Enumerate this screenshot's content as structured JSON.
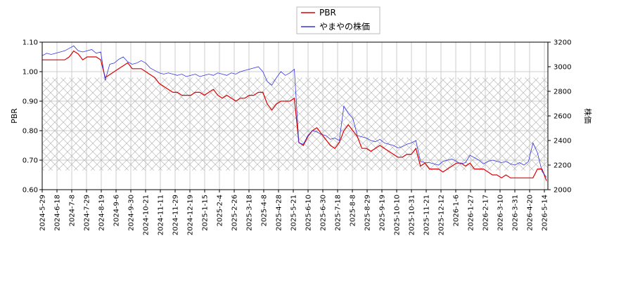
{
  "chart_data": {
    "type": "line",
    "legend": {
      "placement": "top-center",
      "entries": [
        "PBR",
        "やまやの株価"
      ]
    },
    "x_tick_labels": [
      "2024-5-29",
      "2024-6-18",
      "2024-7-8",
      "2024-7-29",
      "2024-8-19",
      "2024-9-6",
      "2024-9-30",
      "2024-10-21",
      "2024-11-11",
      "2024-11-29",
      "2024-12-19",
      "2025-1-15",
      "2025-2-4",
      "2025-2-26",
      "2025-3-18",
      "2025-4-8",
      "2025-4-28",
      "2025-5-21",
      "2025-6-10",
      "2025-6-30",
      "2025-7-18",
      "2025-8-8",
      "2025-8-29",
      "2025-9-19",
      "2025-10-10",
      "2025-10-31",
      "2025-11-21",
      "2025-12-12",
      "2026-1-6",
      "2026-1-27",
      "2026-2-17",
      "2026-3-10",
      "2026-3-31",
      "2026-4-20",
      "2026-5-14"
    ],
    "y_left": {
      "label": "PBR",
      "ylim": [
        0.6,
        1.1
      ],
      "ticks": [
        "0.60",
        "0.70",
        "0.80",
        "0.90",
        "1.00",
        "1.10"
      ]
    },
    "y_right": {
      "label": "株価",
      "ylim": [
        2000,
        3200
      ],
      "ticks": [
        "2000",
        "2200",
        "2400",
        "2600",
        "2800",
        "3000",
        "3200"
      ]
    },
    "grid": true,
    "hatched_band": {
      "axis": "left",
      "from": 0.665,
      "to": 0.98
    },
    "series": [
      {
        "name": "PBR",
        "axis": "left",
        "color": "#dd0000",
        "points": [
          [
            0,
            1.04
          ],
          [
            1,
            1.04
          ],
          [
            2,
            1.04
          ],
          [
            3,
            1.04
          ],
          [
            4,
            1.04
          ],
          [
            5,
            1.04
          ],
          [
            6,
            1.05
          ],
          [
            7,
            1.07
          ],
          [
            8,
            1.06
          ],
          [
            9,
            1.04
          ],
          [
            10,
            1.05
          ],
          [
            11,
            1.05
          ],
          [
            12,
            1.05
          ],
          [
            13,
            1.04
          ],
          [
            14,
            0.98
          ],
          [
            15,
            0.99
          ],
          [
            16,
            1.0
          ],
          [
            17,
            1.01
          ],
          [
            18,
            1.02
          ],
          [
            19,
            1.03
          ],
          [
            20,
            1.01
          ],
          [
            21,
            1.01
          ],
          [
            22,
            1.01
          ],
          [
            23,
            1.0
          ],
          [
            24,
            0.99
          ],
          [
            25,
            0.98
          ],
          [
            26,
            0.96
          ],
          [
            27,
            0.95
          ],
          [
            28,
            0.94
          ],
          [
            29,
            0.93
          ],
          [
            30,
            0.93
          ],
          [
            31,
            0.92
          ],
          [
            32,
            0.92
          ],
          [
            33,
            0.92
          ],
          [
            34,
            0.93
          ],
          [
            35,
            0.93
          ],
          [
            36,
            0.92
          ],
          [
            37,
            0.93
          ],
          [
            38,
            0.94
          ],
          [
            39,
            0.92
          ],
          [
            40,
            0.91
          ],
          [
            41,
            0.92
          ],
          [
            42,
            0.91
          ],
          [
            43,
            0.9
          ],
          [
            44,
            0.91
          ],
          [
            45,
            0.91
          ],
          [
            46,
            0.92
          ],
          [
            47,
            0.92
          ],
          [
            48,
            0.93
          ],
          [
            49,
            0.93
          ],
          [
            50,
            0.89
          ],
          [
            51,
            0.87
          ],
          [
            52,
            0.89
          ],
          [
            53,
            0.9
          ],
          [
            54,
            0.9
          ],
          [
            55,
            0.9
          ],
          [
            56,
            0.91
          ],
          [
            57,
            0.76
          ],
          [
            58,
            0.75
          ],
          [
            59,
            0.78
          ],
          [
            60,
            0.8
          ],
          [
            61,
            0.81
          ],
          [
            62,
            0.79
          ],
          [
            63,
            0.77
          ],
          [
            64,
            0.75
          ],
          [
            65,
            0.74
          ],
          [
            66,
            0.76
          ],
          [
            67,
            0.8
          ],
          [
            68,
            0.82
          ],
          [
            69,
            0.8
          ],
          [
            70,
            0.78
          ],
          [
            71,
            0.74
          ],
          [
            72,
            0.74
          ],
          [
            73,
            0.73
          ],
          [
            74,
            0.74
          ],
          [
            75,
            0.75
          ],
          [
            76,
            0.74
          ],
          [
            77,
            0.73
          ],
          [
            78,
            0.72
          ],
          [
            79,
            0.71
          ],
          [
            80,
            0.71
          ],
          [
            81,
            0.72
          ],
          [
            82,
            0.72
          ],
          [
            83,
            0.74
          ],
          [
            84,
            0.68
          ],
          [
            85,
            0.69
          ],
          [
            86,
            0.67
          ],
          [
            87,
            0.67
          ],
          [
            88,
            0.67
          ],
          [
            89,
            0.66
          ],
          [
            90,
            0.67
          ],
          [
            91,
            0.68
          ],
          [
            92,
            0.69
          ],
          [
            93,
            0.69
          ],
          [
            94,
            0.68
          ],
          [
            95,
            0.69
          ],
          [
            96,
            0.67
          ],
          [
            97,
            0.67
          ],
          [
            98,
            0.67
          ],
          [
            99,
            0.66
          ],
          [
            100,
            0.65
          ],
          [
            101,
            0.65
          ],
          [
            102,
            0.64
          ],
          [
            103,
            0.65
          ],
          [
            104,
            0.64
          ],
          [
            105,
            0.64
          ],
          [
            106,
            0.64
          ],
          [
            107,
            0.64
          ],
          [
            108,
            0.64
          ],
          [
            109,
            0.64
          ],
          [
            110,
            0.67
          ],
          [
            111,
            0.67
          ],
          [
            112,
            0.63
          ]
        ]
      },
      {
        "name": "やまやの株価",
        "axis": "right",
        "color": "#3333dd",
        "points": [
          [
            0,
            3090
          ],
          [
            1,
            3110
          ],
          [
            2,
            3100
          ],
          [
            3,
            3110
          ],
          [
            4,
            3120
          ],
          [
            5,
            3130
          ],
          [
            6,
            3150
          ],
          [
            7,
            3170
          ],
          [
            8,
            3130
          ],
          [
            9,
            3120
          ],
          [
            10,
            3130
          ],
          [
            11,
            3140
          ],
          [
            12,
            3110
          ],
          [
            13,
            3120
          ],
          [
            14,
            2890
          ],
          [
            15,
            3020
          ],
          [
            16,
            3030
          ],
          [
            17,
            3060
          ],
          [
            18,
            3080
          ],
          [
            19,
            3040
          ],
          [
            20,
            3020
          ],
          [
            21,
            3030
          ],
          [
            22,
            3050
          ],
          [
            23,
            3030
          ],
          [
            24,
            2990
          ],
          [
            25,
            2970
          ],
          [
            26,
            2950
          ],
          [
            27,
            2940
          ],
          [
            28,
            2950
          ],
          [
            29,
            2940
          ],
          [
            30,
            2930
          ],
          [
            31,
            2940
          ],
          [
            32,
            2920
          ],
          [
            33,
            2930
          ],
          [
            34,
            2940
          ],
          [
            35,
            2920
          ],
          [
            36,
            2930
          ],
          [
            37,
            2940
          ],
          [
            38,
            2930
          ],
          [
            39,
            2950
          ],
          [
            40,
            2940
          ],
          [
            41,
            2930
          ],
          [
            42,
            2950
          ],
          [
            43,
            2940
          ],
          [
            44,
            2960
          ],
          [
            45,
            2970
          ],
          [
            46,
            2980
          ],
          [
            47,
            2990
          ],
          [
            48,
            3000
          ],
          [
            49,
            2960
          ],
          [
            50,
            2880
          ],
          [
            51,
            2850
          ],
          [
            52,
            2910
          ],
          [
            53,
            2960
          ],
          [
            54,
            2930
          ],
          [
            55,
            2950
          ],
          [
            56,
            2980
          ],
          [
            57,
            2380
          ],
          [
            58,
            2370
          ],
          [
            59,
            2440
          ],
          [
            60,
            2480
          ],
          [
            61,
            2470
          ],
          [
            62,
            2450
          ],
          [
            63,
            2440
          ],
          [
            64,
            2410
          ],
          [
            65,
            2420
          ],
          [
            66,
            2400
          ],
          [
            67,
            2680
          ],
          [
            68,
            2620
          ],
          [
            69,
            2580
          ],
          [
            70,
            2440
          ],
          [
            71,
            2430
          ],
          [
            72,
            2420
          ],
          [
            73,
            2400
          ],
          [
            74,
            2390
          ],
          [
            75,
            2410
          ],
          [
            76,
            2380
          ],
          [
            77,
            2370
          ],
          [
            78,
            2360
          ],
          [
            79,
            2340
          ],
          [
            80,
            2350
          ],
          [
            81,
            2370
          ],
          [
            82,
            2380
          ],
          [
            83,
            2400
          ],
          [
            84,
            2230
          ],
          [
            85,
            2220
          ],
          [
            86,
            2220
          ],
          [
            87,
            2210
          ],
          [
            88,
            2200
          ],
          [
            89,
            2230
          ],
          [
            90,
            2240
          ],
          [
            91,
            2250
          ],
          [
            92,
            2230
          ],
          [
            93,
            2210
          ],
          [
            94,
            2220
          ],
          [
            95,
            2280
          ],
          [
            96,
            2260
          ],
          [
            97,
            2240
          ],
          [
            98,
            2210
          ],
          [
            99,
            2230
          ],
          [
            100,
            2240
          ],
          [
            101,
            2230
          ],
          [
            102,
            2220
          ],
          [
            103,
            2230
          ],
          [
            104,
            2210
          ],
          [
            105,
            2200
          ],
          [
            106,
            2220
          ],
          [
            107,
            2200
          ],
          [
            108,
            2230
          ],
          [
            109,
            2380
          ],
          [
            110,
            2300
          ],
          [
            111,
            2150
          ],
          [
            112,
            2100
          ]
        ]
      }
    ]
  }
}
